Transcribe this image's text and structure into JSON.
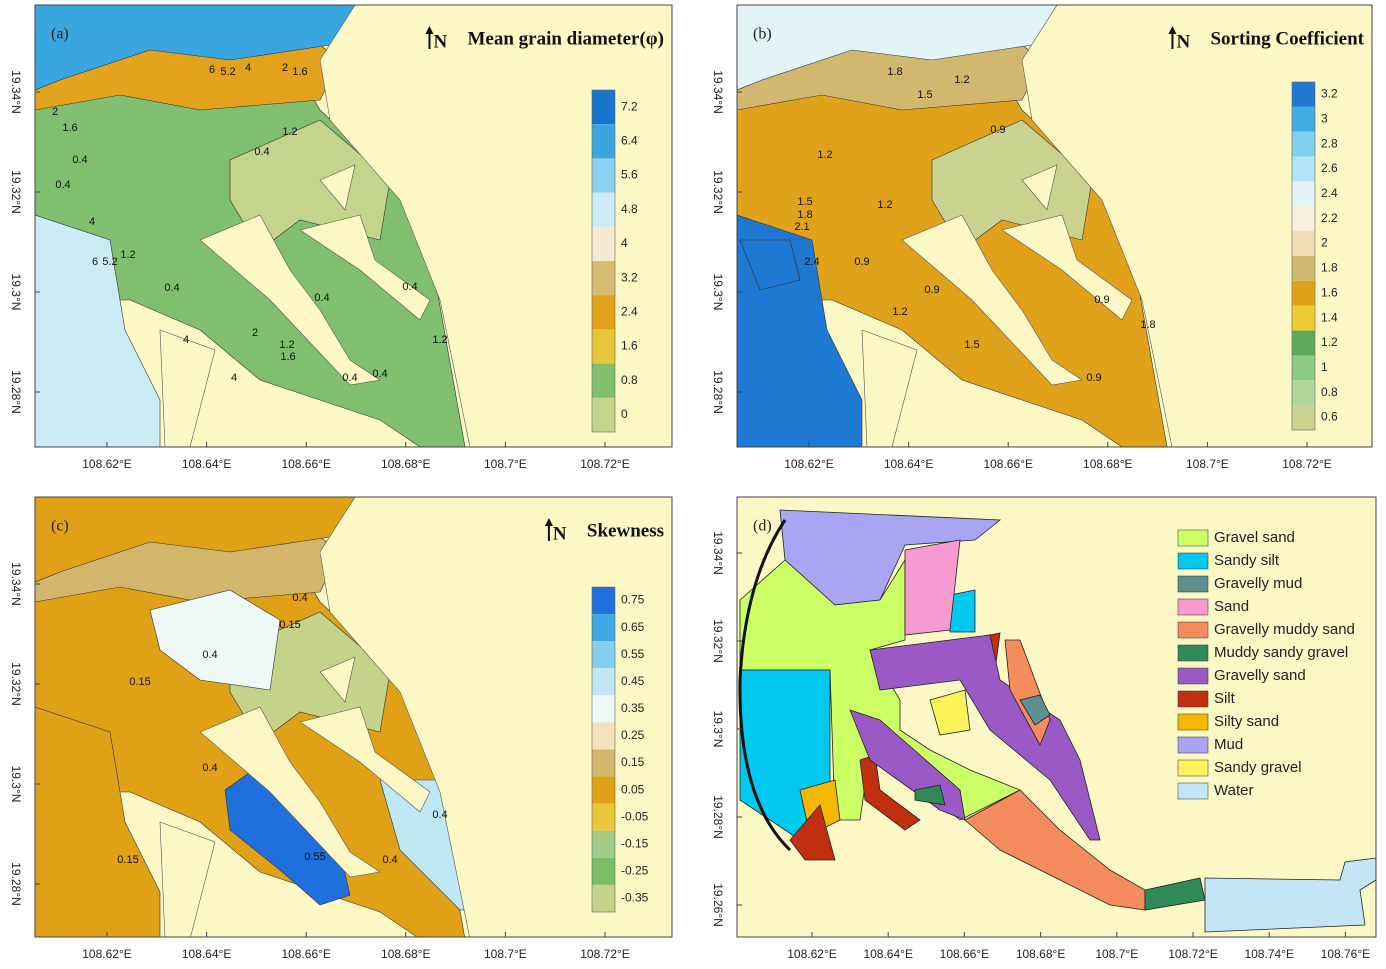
{
  "panels": [
    {
      "label": "(a)",
      "north": "N",
      "title": "Mean grain diameter(φ)",
      "xticks": [
        "108.62°E",
        "108.64°E",
        "108.66°E",
        "108.68°E",
        "108.7°E",
        "108.72°E"
      ],
      "yticks": [
        "19.34°N",
        "19.32°N",
        "19.3°N",
        "19.28°N"
      ],
      "colorbar": {
        "ticks": [
          7.2,
          6.4,
          5.6,
          4.8,
          4,
          3.2,
          2.4,
          1.6,
          0.8,
          0
        ],
        "colors": [
          "#1874cd",
          "#3aa6e0",
          "#8ad2ef",
          "#cbecf5",
          "#f3ead0",
          "#d9bb72",
          "#e2a21c",
          "#e8c63a",
          "#7fbf6f",
          "#c4d48c"
        ]
      },
      "contour_labels": [
        6,
        5.2,
        4,
        2,
        1.6,
        2,
        1.6,
        1.2,
        0.4,
        0.4,
        0.4,
        4,
        5.2,
        6,
        1.2,
        0.4,
        0.4,
        0.4,
        1.2,
        4,
        4,
        2,
        1.2,
        1.6,
        0.4,
        0.4
      ]
    },
    {
      "label": "(b)",
      "north": "N",
      "title": "Sorting Coefficient",
      "xticks": [
        "108.62°E",
        "108.64°E",
        "108.66°E",
        "108.68°E",
        "108.7°E",
        "108.72°E"
      ],
      "yticks": [
        "19.34°N",
        "19.32°N",
        "19.3°N",
        "19.28°N"
      ],
      "colorbar": {
        "ticks": [
          3.2,
          3,
          2.8,
          2.6,
          2.4,
          2.2,
          2,
          1.8,
          1.6,
          1.4,
          1.2,
          1,
          0.8,
          0.6
        ],
        "colors": [
          "#1f78d1",
          "#40aee5",
          "#7fcfee",
          "#b4e4f3",
          "#e2f4f5",
          "#f5f1dd",
          "#f1ddb5",
          "#d2b86e",
          "#e1a21b",
          "#eccb35",
          "#5fa85a",
          "#8ccb84",
          "#b1d59a",
          "#c9d38f"
        ]
      },
      "contour_labels": [
        1.8,
        1.5,
        1.2,
        0.9,
        1.2,
        1.5,
        1.8,
        2.1,
        2.4,
        1.2,
        0.9,
        1.2,
        0.9,
        1.5,
        0.9,
        1.8,
        0.9
      ]
    },
    {
      "label": "(c)",
      "north": "N",
      "title": "Skewness",
      "xticks": [
        "108.62°E",
        "108.64°E",
        "108.66°E",
        "108.68°E",
        "108.7°E",
        "108.72°E"
      ],
      "yticks": [
        "19.34°N",
        "19.32°N",
        "19.3°N",
        "19.28°N"
      ],
      "colorbar": {
        "ticks": [
          0.75,
          0.65,
          0.55,
          0.45,
          0.35,
          0.25,
          0.15,
          0.05,
          -0.05,
          -0.15,
          -0.25,
          -0.35
        ],
        "colors": [
          "#1f6fdc",
          "#3ea9e2",
          "#85cfee",
          "#bfe8f4",
          "#eef8f5",
          "#f4e0bc",
          "#d3b56c",
          "#e0a116",
          "#e8c73a",
          "#a0cb89",
          "#7dbd6a",
          "#c4d28a"
        ]
      },
      "contour_labels": [
        0.4,
        0.15,
        0.4,
        0.15,
        0.4,
        0.4,
        0.55,
        0.4,
        0.15
      ]
    },
    {
      "label": "(d)",
      "xticks": [
        "108.62°E",
        "108.64°E",
        "108.66°E",
        "108.68°E",
        "108.7°E",
        "108.72°E",
        "108.74°E",
        "108.76°E"
      ],
      "yticks": [
        "19.34°N",
        "19.32°N",
        "19.3°N",
        "19.28°N",
        "19.26°N"
      ],
      "legend": [
        {
          "name": "Gravel sand",
          "color": "#ccff66"
        },
        {
          "name": "Sandy silt",
          "color": "#00c8ee"
        },
        {
          "name": "Gravelly mud",
          "color": "#5f8f8f"
        },
        {
          "name": "Sand",
          "color": "#f79ad0"
        },
        {
          "name": "Gravelly muddy sand",
          "color": "#f48c5e"
        },
        {
          "name": "Muddy sandy gravel",
          "color": "#2e8b57"
        },
        {
          "name": "Gravelly sand",
          "color": "#9b59c6"
        },
        {
          "name": "Silt",
          "color": "#c0300f"
        },
        {
          "name": "Silty sand",
          "color": "#f5b700"
        },
        {
          "name": "Mud",
          "color": "#a9a5f2"
        },
        {
          "name": "Sandy gravel",
          "color": "#fbf35a"
        },
        {
          "name": "Water",
          "color": "#c4e4f7"
        }
      ]
    }
  ]
}
